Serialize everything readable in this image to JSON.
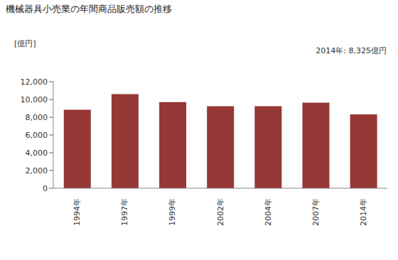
{
  "chart_data": {
    "type": "bar",
    "title": "機械器具小売業の年間商品販売額の推移",
    "y_label": "[億円]",
    "annotation": "2014年: 8,325億円",
    "categories": [
      "1994年",
      "1997年",
      "1999年",
      "2002年",
      "2004年",
      "2007年",
      "2014年"
    ],
    "values": [
      8850,
      10600,
      9700,
      9250,
      9250,
      9650,
      8325
    ],
    "color": "#953735",
    "ylim": [
      0,
      12000
    ],
    "yticks": [
      0,
      {
        "value": 2000,
        "label": "2,000"
      },
      {
        "value": 4000,
        "label": "4,000"
      },
      {
        "value": 6000,
        "label": "6,000"
      },
      {
        "value": 8000,
        "label": "8,000"
      },
      {
        "value": 10000,
        "label": "10,000"
      },
      {
        "value": 12000,
        "label": "12,000"
      }
    ],
    "grid": false
  }
}
